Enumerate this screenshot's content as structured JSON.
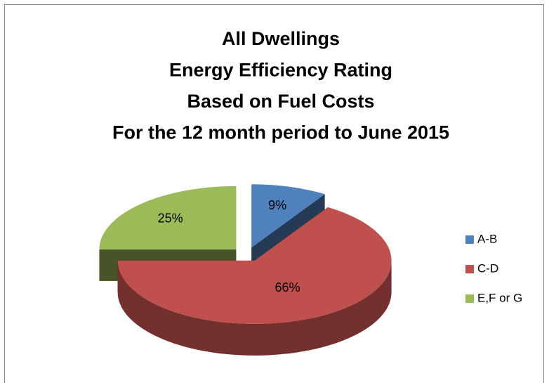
{
  "chart_data": {
    "type": "pie3d",
    "title": [
      "All Dwellings",
      "Energy Efficiency Rating",
      "Based on Fuel Costs",
      "For the 12 month period to June 2015"
    ],
    "categories": [
      "A-B",
      "C-D",
      "E,F or G"
    ],
    "values": [
      9,
      66,
      25
    ],
    "value_labels": [
      "9%",
      "66%",
      "25%"
    ],
    "colors": [
      "#4f81bd",
      "#c0504d",
      "#9bbb59"
    ],
    "legend": "right"
  }
}
